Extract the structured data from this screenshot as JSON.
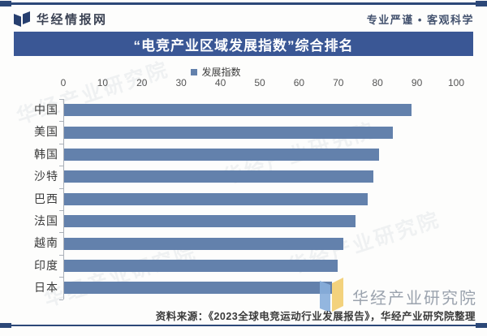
{
  "header": {
    "brand": "华经情报网",
    "slogan": "专业严谨 • 客观科学"
  },
  "title": "“电竞产业区域发展指数”综合排名",
  "chart_data": {
    "type": "bar",
    "orientation": "horizontal",
    "title": "“电竞产业区域发展指数”综合排名",
    "legend": [
      "发展指数"
    ],
    "legend_position": "top",
    "categories": [
      "中国",
      "美国",
      "韩国",
      "沙特",
      "巴西",
      "法国",
      "越南",
      "印度",
      "日本"
    ],
    "values": [
      88.5,
      83.7,
      80.2,
      78.8,
      77.2,
      74.1,
      71.0,
      69.6,
      68.2
    ],
    "xlim": [
      0,
      100
    ],
    "x_ticks": [
      0,
      10,
      20,
      30,
      40,
      50,
      60,
      70,
      80,
      90,
      100
    ],
    "grid": false,
    "bar_color": "#6381AC"
  },
  "footer": {
    "source": "资料来源：《2023全球电竞运动行业发展报告》，华经产业研究院整理"
  },
  "watermark": {
    "text": "华经产业研究院"
  },
  "colors": {
    "navy_rule": "#2C4878",
    "banner": "#3A5795",
    "bar": "#6381AC"
  }
}
